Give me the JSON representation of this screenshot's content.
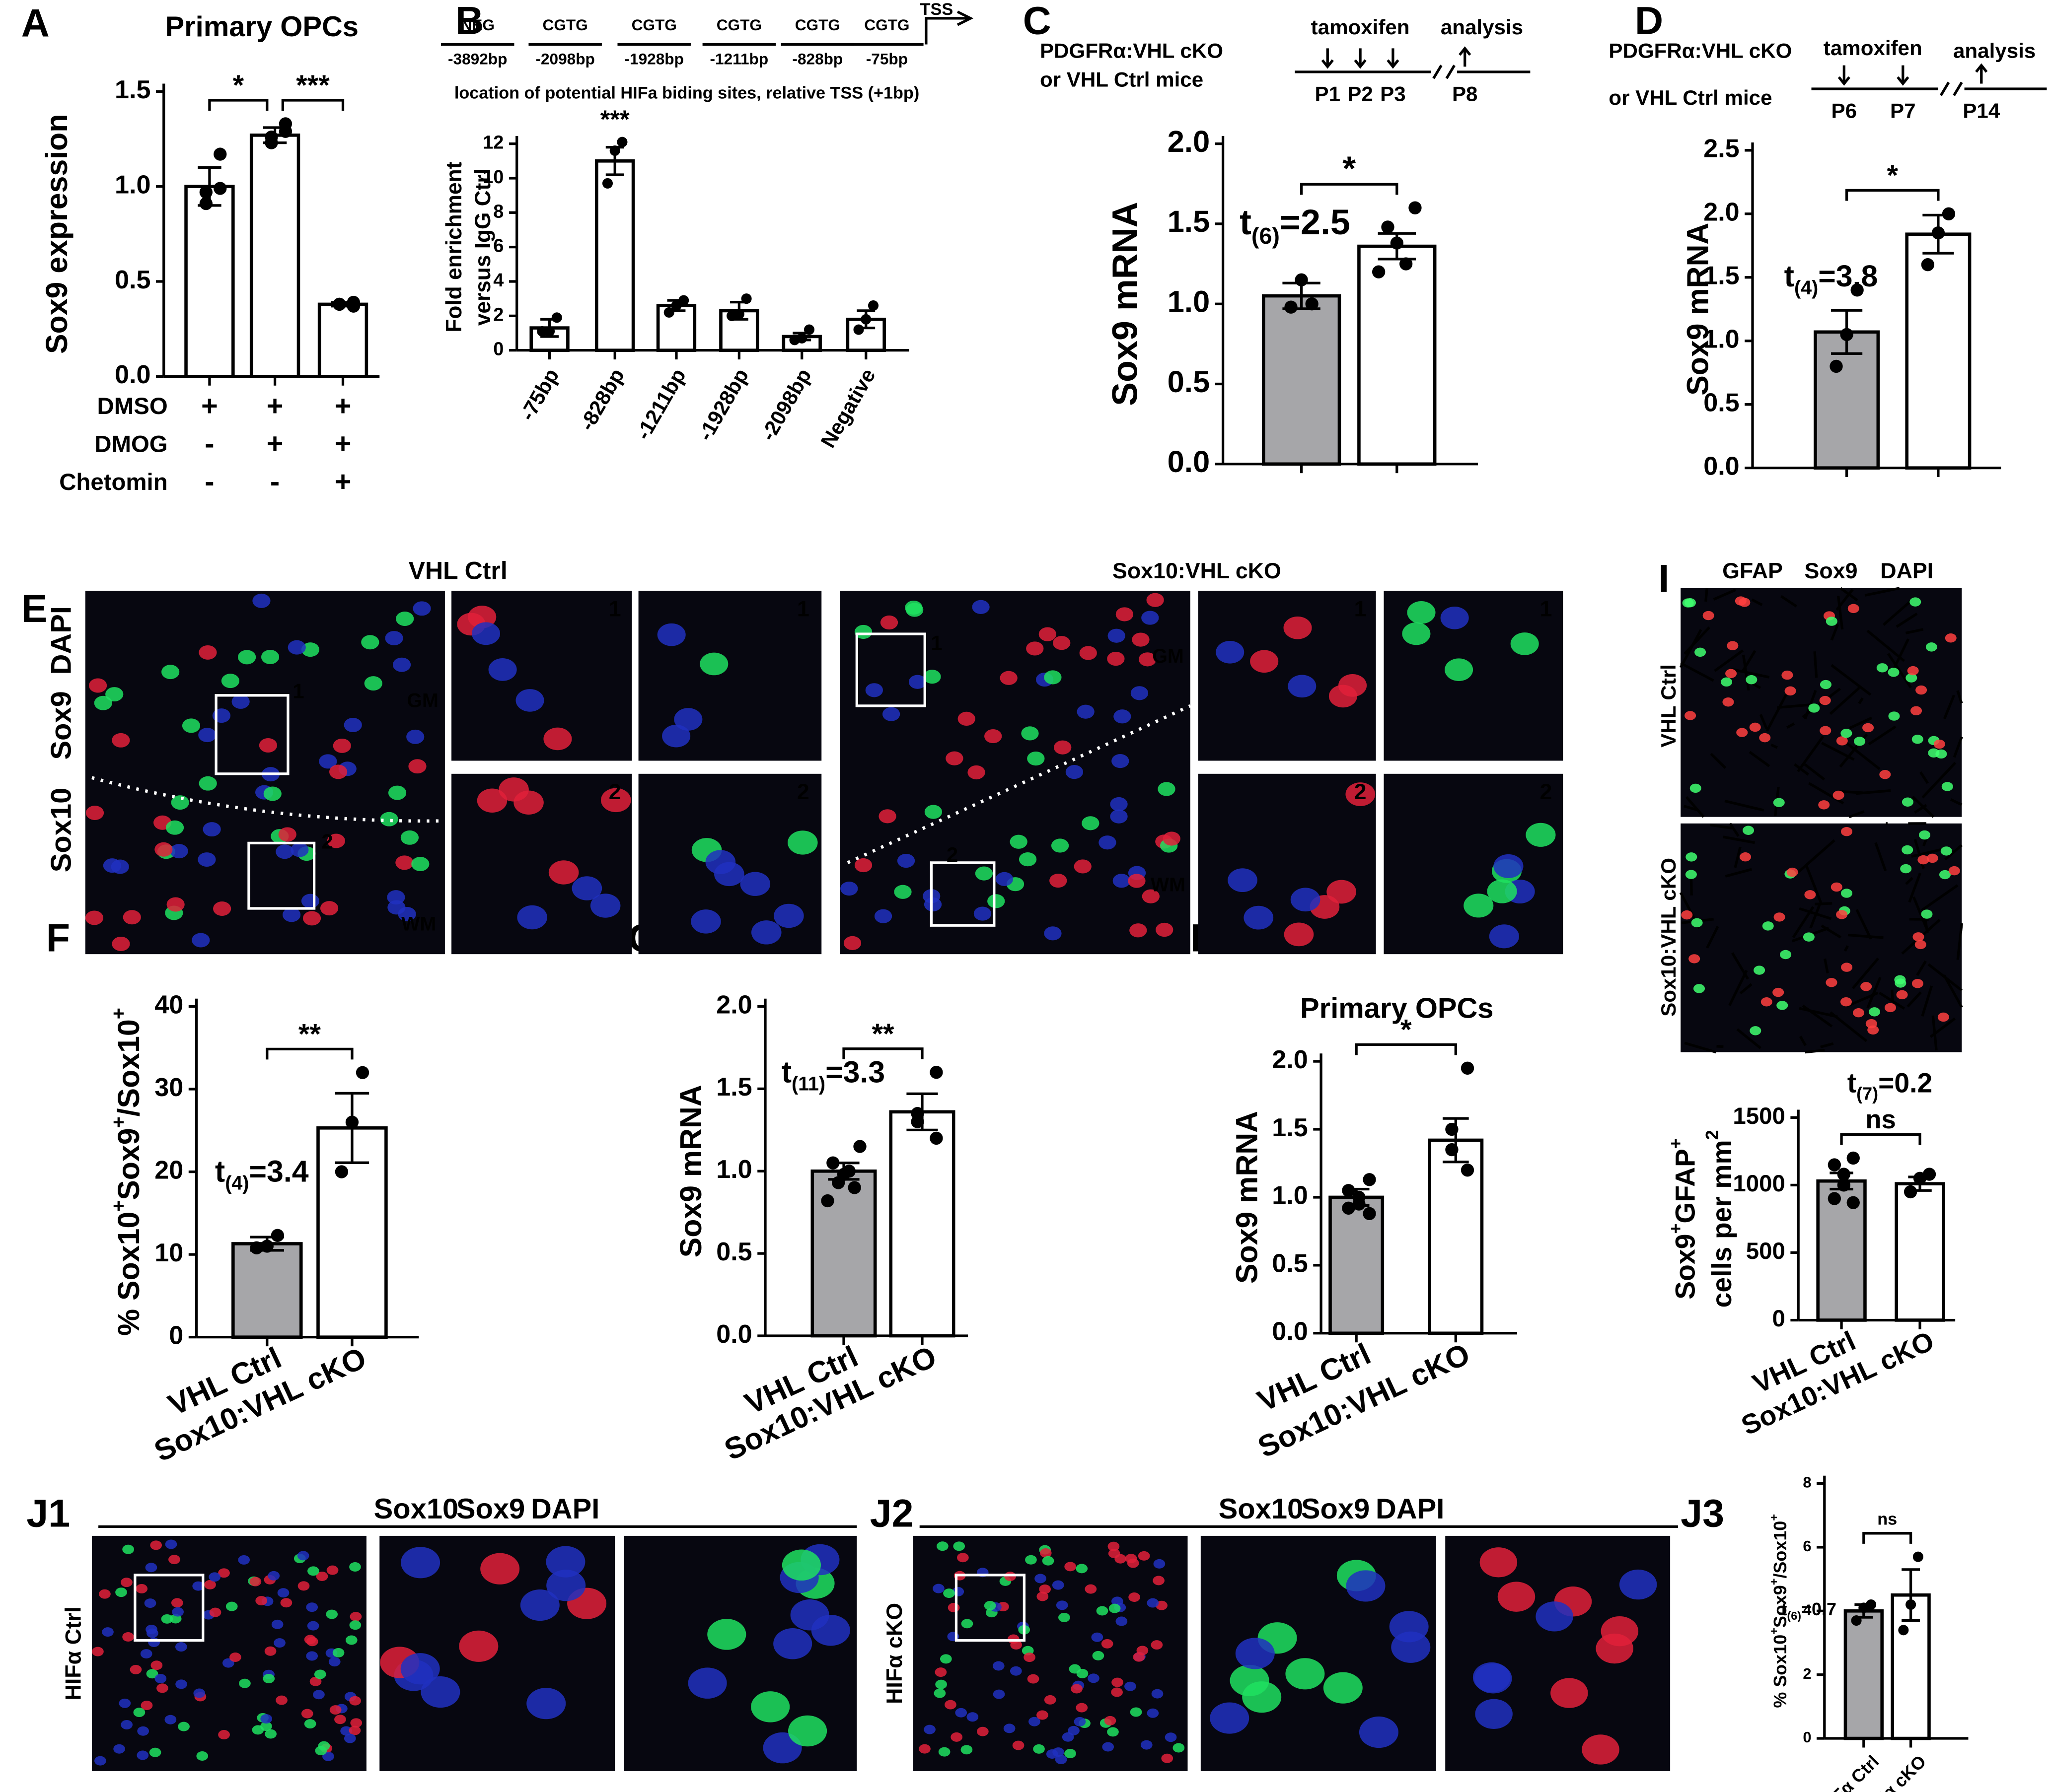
{
  "chart_data": [
    {
      "type": "bar",
      "panel": "A",
      "title": "Primary OPCs",
      "ylabel": [
        [
          {
            "text": "Sox9 expression"
          }
        ]
      ],
      "values": [
        1.0,
        1.27,
        0.38
      ],
      "errors": [
        0.1,
        0.04,
        0.01
      ],
      "points": [
        [
          1.17,
          0.97,
          0.91,
          0.99
        ],
        [
          1.33,
          1.26,
          1.23,
          1.29
        ],
        [
          0.39,
          0.38,
          0.38,
          0.37
        ]
      ],
      "colors": [
        "#ffffff",
        "#ffffff",
        "#ffffff"
      ],
      "ylim": [
        0,
        1.5
      ],
      "yticks": [
        {
          "value": 0,
          "label": "0.0"
        },
        0.5,
        {
          "value": 1,
          "label": "1.0"
        },
        1.5
      ],
      "treatments": [
        {
          "name": "DMSO",
          "marks": [
            "+",
            "+",
            "+"
          ]
        },
        {
          "name": "DMOG",
          "marks": [
            "-",
            "+",
            "+"
          ]
        },
        {
          "name": "Chetomin",
          "marks": [
            "-",
            "-",
            "+"
          ]
        }
      ],
      "sig": [
        {
          "from": 0,
          "to": 1,
          "label": "*"
        },
        {
          "from": 1,
          "to": 2,
          "label": "***"
        }
      ]
    },
    {
      "type": "bar",
      "panel": "B",
      "ylabel": [
        [
          {
            "text": "Fold enrichment"
          }
        ],
        [
          {
            "text": "versus IgG Ctrl"
          }
        ]
      ],
      "categories": [
        "-75bp",
        "-828bp",
        "-1211bp",
        "-1928bp",
        "-2098bp",
        "Negative"
      ],
      "values": [
        1.3,
        11,
        2.6,
        2.3,
        0.8,
        1.8
      ],
      "errors": [
        0.5,
        0.8,
        0.3,
        0.5,
        0.2,
        0.5
      ],
      "points": [
        [
          1.9,
          1.1,
          1.1
        ],
        [
          12.1,
          11.6,
          9.7
        ],
        [
          2.9,
          2.6,
          2.2
        ],
        [
          3.0,
          2.1,
          2.0
        ],
        [
          1.2,
          0.7,
          0.6
        ],
        [
          2.6,
          1.8,
          1.2
        ]
      ],
      "colors": [
        "#ffffff",
        "#ffffff",
        "#ffffff",
        "#ffffff",
        "#ffffff",
        "#ffffff"
      ],
      "ylim": [
        0,
        12
      ],
      "yticks": [
        0,
        2,
        4,
        6,
        8,
        10,
        12
      ],
      "annotations": [
        {
          "index": 1,
          "text": "***"
        }
      ],
      "header": {
        "sites": [
          {
            "name": "NEG",
            "position": "-3892bp",
            "color": "#000000"
          },
          {
            "name": "CGTG",
            "position": "-2098bp",
            "color": "#000000"
          },
          {
            "name": "CGTG",
            "position": "-1928bp",
            "color": "#000000"
          },
          {
            "name": "CGTG",
            "position": "-1211bp",
            "color": "#000000"
          },
          {
            "name": "CGTG",
            "position": "-828bp",
            "color": "#e3141b"
          },
          {
            "name": "CGTG",
            "position": "-75bp",
            "color": "#000000"
          }
        ],
        "tss": "TSS",
        "caption": "location of potential HIFa biding sites, relative TSS (+1bp)"
      }
    },
    {
      "type": "bar",
      "panel": "C",
      "ylabel": [
        [
          {
            "text": "Sox9 mRNA"
          }
        ]
      ],
      "values": [
        1.05,
        1.36
      ],
      "errors": [
        0.08,
        0.08
      ],
      "points": [
        [
          1.0,
          1.15,
          0.98
        ],
        [
          1.6,
          1.48,
          1.38,
          1.25,
          1.2
        ]
      ],
      "colors": [
        "#a6a6a9",
        "#ffffff"
      ],
      "ylim": [
        0,
        2
      ],
      "yticks": [
        {
          "value": 0,
          "label": "0.0"
        },
        0.5,
        {
          "value": 1,
          "label": "1.0"
        },
        1.5,
        {
          "value": 2,
          "label": "2.0"
        }
      ],
      "sig": [
        {
          "from": 0,
          "to": 1,
          "label": "*"
        }
      ],
      "stat": [
        {
          "text": "t"
        },
        {
          "text": "(6)",
          "sub": true
        },
        {
          "text": "=2.5"
        }
      ],
      "design": {
        "subtitle": [
          "PDGFRα:VHL cKO",
          "or VHL Ctrl mice"
        ],
        "treatment": "tamoxifen",
        "endpoint": "analysis",
        "treatment_days": [
          "P1",
          "P2",
          "P3"
        ],
        "analysis_day": "P8"
      }
    },
    {
      "type": "bar",
      "panel": "D",
      "ylabel": [
        [
          {
            "text": "Sox9 mRNA"
          }
        ]
      ],
      "values": [
        1.07,
        1.84
      ],
      "errors": [
        0.17,
        0.15
      ],
      "points": [
        [
          1.4,
          1.05,
          0.8
        ],
        [
          2.0,
          1.85,
          1.6
        ]
      ],
      "colors": [
        "#a6a6a9",
        "#ffffff"
      ],
      "ylim": [
        0,
        2.5
      ],
      "yticks": [
        {
          "value": 0,
          "label": "0.0"
        },
        0.5,
        {
          "value": 1,
          "label": "1.0"
        },
        1.5,
        {
          "value": 2,
          "label": "2.0"
        },
        2.5
      ],
      "sig": [
        {
          "from": 0,
          "to": 1,
          "label": "*"
        }
      ],
      "stat": [
        {
          "text": "t"
        },
        {
          "text": "(4)",
          "sub": true
        },
        {
          "text": "=3.8"
        }
      ],
      "design": {
        "subtitle": [
          "PDGFRα:VHL cKO",
          "or VHL Ctrl mice"
        ],
        "treatment": "tamoxifen",
        "endpoint": "analysis",
        "treatment_days": [
          "P6",
          "P7"
        ],
        "analysis_day": "P14"
      }
    },
    {
      "type": "bar",
      "panel": "F",
      "ylabel": [
        [
          {
            "text": "% Sox10"
          },
          {
            "text": "+",
            "sup": true
          },
          {
            "text": "Sox9"
          },
          {
            "text": "+",
            "sup": true
          },
          {
            "text": "/Sox10"
          },
          {
            "text": "+",
            "sup": true
          }
        ]
      ],
      "categories": [
        "VHL Ctrl",
        "Sox10:VHL cKO"
      ],
      "values": [
        11.3,
        25.3
      ],
      "errors": [
        0.8,
        4.2
      ],
      "points": [
        [
          12.3,
          11.0,
          10.8
        ],
        [
          32,
          26,
          20
        ]
      ],
      "colors": [
        "#a6a6a9",
        "#ffffff"
      ],
      "ylim": [
        0,
        40
      ],
      "yticks": [
        0,
        10,
        20,
        30,
        40
      ],
      "sig": [
        {
          "from": 0,
          "to": 1,
          "label": "**"
        }
      ],
      "stat": [
        {
          "text": "t"
        },
        {
          "text": "(4)",
          "sub": true
        },
        {
          "text": "=3.4"
        }
      ]
    },
    {
      "type": "bar",
      "panel": "G",
      "ylabel": [
        [
          {
            "text": "Sox9 mRNA"
          }
        ]
      ],
      "categories": [
        "VHL Ctrl",
        "Sox10:VHL cKO"
      ],
      "values": [
        1.0,
        1.36
      ],
      "errors": [
        0.05,
        0.11
      ],
      "points": [
        [
          1.15,
          1.05,
          1.0,
          0.98,
          0.93,
          0.9,
          0.82
        ],
        [
          1.6,
          1.35,
          1.3,
          1.2
        ]
      ],
      "colors": [
        "#a6a6a9",
        "#ffffff"
      ],
      "ylim": [
        0,
        2
      ],
      "yticks": [
        {
          "value": 0,
          "label": "0.0"
        },
        0.5,
        {
          "value": 1,
          "label": "1.0"
        },
        1.5,
        {
          "value": 2,
          "label": "2.0"
        }
      ],
      "sig": [
        {
          "from": 0,
          "to": 1,
          "label": "**"
        }
      ],
      "stat": [
        {
          "text": "t"
        },
        {
          "text": "(11)",
          "sub": true
        },
        {
          "text": "=3.3"
        }
      ]
    },
    {
      "type": "bar",
      "panel": "H",
      "title": "Primary OPCs",
      "ylabel": [
        [
          {
            "text": "Sox9 mRNA"
          }
        ]
      ],
      "categories": [
        "VHL Ctrl",
        "Sox10:VHL cKO"
      ],
      "values": [
        1.0,
        1.42
      ],
      "errors": [
        0.06,
        0.16
      ],
      "points": [
        [
          1.13,
          1.05,
          1.0,
          0.95,
          0.92,
          0.88
        ],
        [
          1.95,
          1.5,
          1.35,
          1.2
        ]
      ],
      "colors": [
        "#a6a6a9",
        "#ffffff"
      ],
      "ylim": [
        0,
        2
      ],
      "yticks": [
        {
          "value": 0,
          "label": "0.0"
        },
        0.5,
        {
          "value": 1,
          "label": "1.0"
        },
        1.5,
        {
          "value": 2,
          "label": "2.0"
        }
      ],
      "sig": [
        {
          "from": 0,
          "to": 1,
          "label": "*"
        }
      ]
    },
    {
      "type": "bar",
      "panel": "I",
      "ylabel": [
        [
          {
            "text": "Sox9"
          },
          {
            "text": "+",
            "sup": true
          },
          {
            "text": "GFAP"
          },
          {
            "text": "+",
            "sup": true
          }
        ],
        [
          {
            "text": "cells per mm"
          },
          {
            "text": "2",
            "sup": true
          }
        ]
      ],
      "categories": [
        "VHL Ctrl",
        "Sox10:VHL cKO"
      ],
      "values": [
        1030,
        1010
      ],
      "errors": [
        60,
        50
      ],
      "points": [
        [
          1200,
          1150,
          1080,
          1000,
          900,
          870
        ],
        [
          1080,
          1050,
          950
        ]
      ],
      "colors": [
        "#a6a6a9",
        "#ffffff"
      ],
      "ylim": [
        0,
        1500
      ],
      "yticks": [
        0,
        500,
        1000,
        1500
      ],
      "sig": [
        {
          "from": 0,
          "to": 1,
          "label": "ns"
        }
      ],
      "stat": [
        {
          "text": "t"
        },
        {
          "text": "(7)",
          "sub": true
        },
        {
          "text": "=0.2"
        }
      ]
    },
    {
      "type": "bar",
      "panel": "J3",
      "ylabel": [
        [
          {
            "text": "% Sox10"
          },
          {
            "text": "+",
            "sup": true
          },
          {
            "text": "Sox9"
          },
          {
            "text": "+",
            "sup": true
          },
          {
            "text": "/Sox10"
          },
          {
            "text": "+",
            "sup": true
          }
        ]
      ],
      "categories": [
        "HIFα Ctrl",
        "HIFα cKO"
      ],
      "values": [
        4.0,
        4.5
      ],
      "errors": [
        0.2,
        0.8
      ],
      "points": [
        [
          4.2,
          4.1,
          3.7
        ],
        [
          5.7,
          4.2,
          3.4
        ]
      ],
      "colors": [
        "#a6a6a9",
        "#ffffff"
      ],
      "ylim": [
        0,
        8
      ],
      "yticks": [
        0,
        2,
        4,
        6,
        8
      ],
      "sig": [
        {
          "from": 0,
          "to": 1,
          "label": "ns"
        }
      ],
      "stat": [
        {
          "text": "t"
        },
        {
          "text": "(6)",
          "sub": true
        },
        {
          "text": "=0.7"
        }
      ]
    }
  ],
  "image_panels": {
    "E": {
      "panel": "E",
      "titles": [
        "VHL Ctrl",
        "Sox10:VHL cKO"
      ],
      "channels": [
        {
          "text": "Sox10",
          "color": "#2ee86e"
        },
        {
          "text": "Sox9",
          "color": "#ff2a2a"
        },
        {
          "text": "DAPI",
          "color": "#2a2aff"
        }
      ],
      "regions": [
        "GM",
        "WM"
      ],
      "insets": [
        "1",
        "2"
      ]
    },
    "I": {
      "panel": "I",
      "channels": [
        {
          "text": "GFAP",
          "color": "#2ee86e"
        },
        {
          "text": "Sox9",
          "color": "#ff2a2a"
        },
        {
          "text": "DAPI",
          "color": "#2a2aff"
        }
      ],
      "rows": [
        "VHL Ctrl",
        "Sox10:VHL cKO"
      ]
    },
    "J1": {
      "panel": "J1",
      "channels": [
        {
          "text": "Sox10",
          "color": "#2ee86e"
        },
        {
          "text": "Sox9",
          "color": "#ff2a2a"
        },
        {
          "text": "DAPI",
          "color": "#2a2aff"
        }
      ],
      "row": "HIFα Ctrl"
    },
    "J2": {
      "panel": "J2",
      "channels": [
        {
          "text": "Sox10",
          "color": "#2ee86e"
        },
        {
          "text": "Sox9",
          "color": "#ff2a2a"
        },
        {
          "text": "DAPI",
          "color": "#2a2aff"
        }
      ],
      "row": "HIFα cKO"
    }
  }
}
